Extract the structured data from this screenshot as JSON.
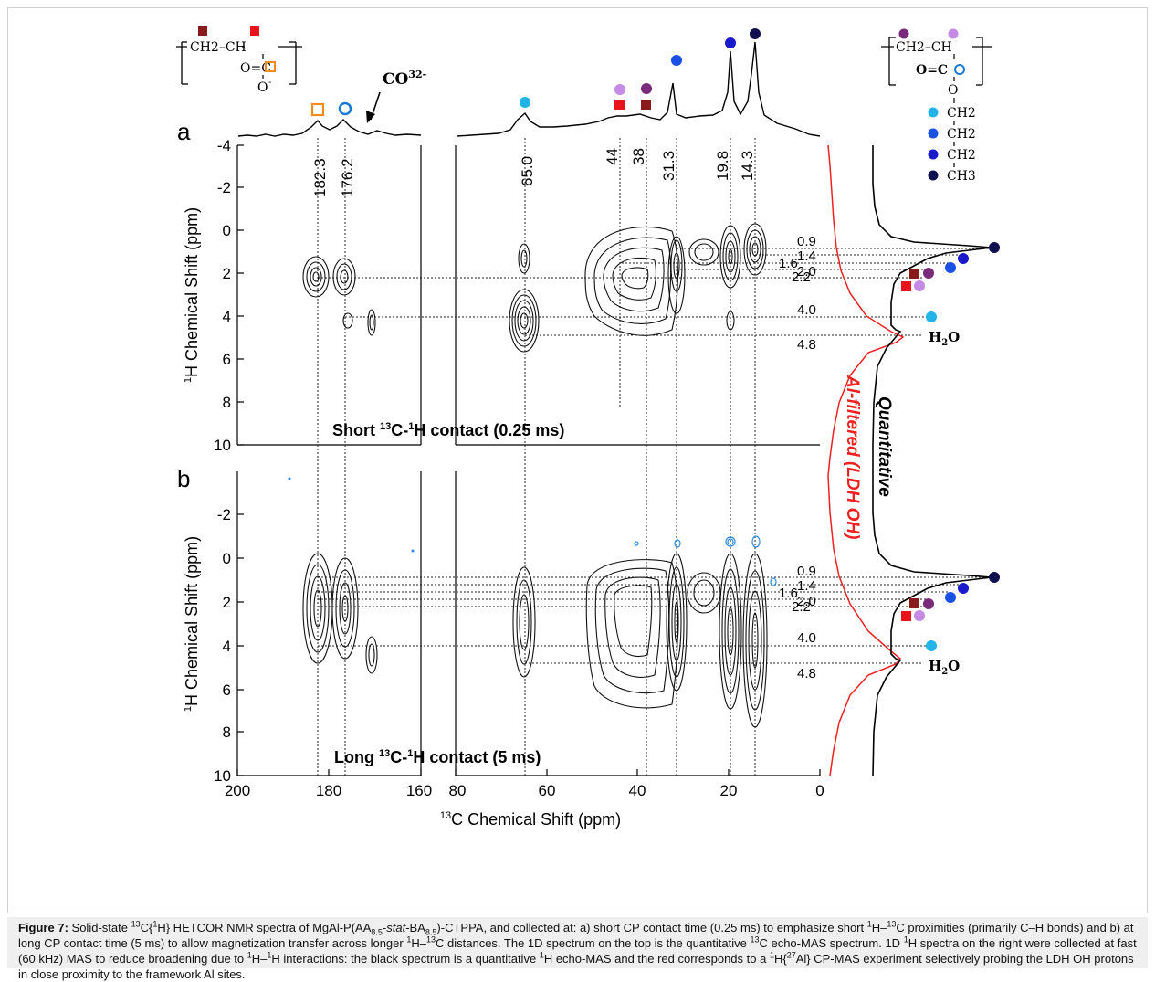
{
  "panel_labels": [
    "a",
    "b"
  ],
  "x_axis": {
    "label": "13C Chemical Shift (ppm)",
    "left_ticks": [
      "200",
      "180",
      "160"
    ],
    "right_ticks": [
      "80",
      "60",
      "40",
      "20",
      "0"
    ]
  },
  "y_axis": {
    "label": "1H Chemical Shift (ppm)",
    "ticks_a": [
      "-4",
      "-2",
      "0",
      "2",
      "4",
      "6",
      "8",
      "10"
    ],
    "ticks_b": [
      "-2",
      "0",
      "2",
      "4",
      "6",
      "8",
      "10"
    ]
  },
  "c13_peaks": [
    "182.3",
    "176.2",
    "65.0",
    "44",
    "38",
    "31.3",
    "19.8",
    "14.3"
  ],
  "h1_peaks": [
    "0.9",
    "1.4",
    "1.6",
    "2.2",
    "2.0",
    "4.0",
    "4.8"
  ],
  "panel_titles": {
    "a": "Short 13C-1H contact (0.25 ms)",
    "b": "Long 13C-1H contact (5 ms)"
  },
  "carbonate_label": "CO32-",
  "h2o_label": "H2O",
  "side_labels": {
    "red": "Al-filtered (LDH OH)",
    "black": "Quantitative"
  },
  "structure_left": {
    "row1": "CH2–CH",
    "row2": "O=C",
    "row3": "O"
  },
  "structure_right": [
    "CH2–CH",
    "O=C",
    "O",
    "CH2",
    "CH2",
    "CH2",
    "CH3"
  ],
  "colors": {
    "dark_red": "#8b1a1a",
    "red": "#e8141c",
    "orange": "#f28a1e",
    "blue_ring": "#1a7ad6",
    "cyan": "#22b4e6",
    "blue": "#1a50e6",
    "navy": "#1a1acc",
    "dark_navy": "#101050",
    "purple": "#7a2a7a",
    "lilac": "#c48ae6",
    "red_spectrum": "#ee2020"
  },
  "caption": {
    "fig_label": "Figure 7:",
    "text": "Solid-state 13C{1H} HETCOR NMR spectra of MgAl-P(AA8.5-stat-BA8.5)-CTPPA, and collected at: a) short CP contact time (0.25 ms) to emphasize short 1H–13C proximities (primarily C–H bonds) and b) at long CP contact time (5 ms) to allow magnetization transfer across longer 1H–13C distances. The 1D spectrum on the top is the quantitative 13C echo-MAS spectrum. 1D 1H spectra on the right were collected at fast (60 kHz) MAS to reduce broadening due to 1H–1H interactions: the black spectrum is a quantitative 1H echo-MAS and the red corresponds to a 1H{27Al} CP-MAS experiment selectively probing the LDH OH protons in close proximity to the framework Al sites."
  }
}
